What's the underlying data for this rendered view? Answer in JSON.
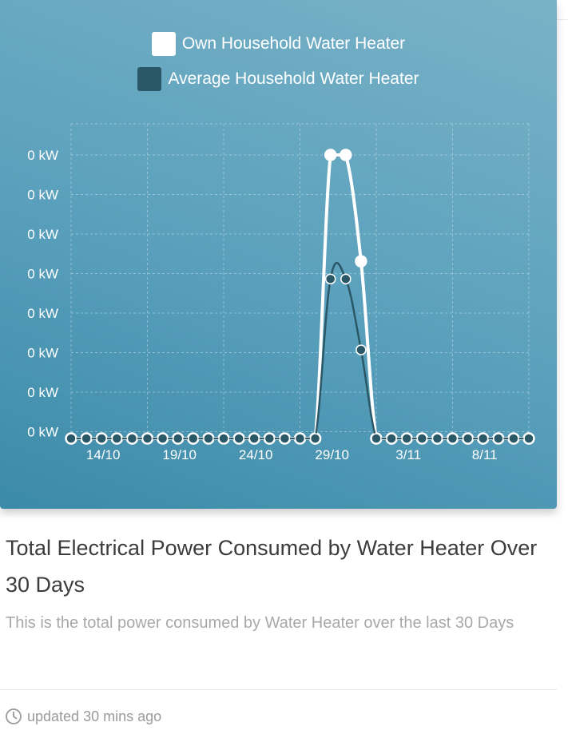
{
  "card": {
    "title": "Total Electrical Power Consumed by Water Heater Over 30 Days",
    "description": "This is the total power consumed by Water Heater over the last 30 Days",
    "footer_text": "updated 30 mins ago",
    "footer_icon": "clock-icon"
  },
  "chart_data": {
    "type": "line",
    "title": "",
    "xlabel": "",
    "ylabel": "",
    "y_tick_labels": [
      "0 kW",
      "0 kW",
      "0 kW",
      "0 kW",
      "0 kW",
      "0 kW",
      "0 kW",
      "0 kW"
    ],
    "x_tick_labels": [
      "14/10",
      "19/10",
      "24/10",
      "29/10",
      "3/11",
      "8/11"
    ],
    "ylim": [
      0,
      0.0007
    ],
    "grid": true,
    "legend_position": "top-center",
    "x": [
      "12/10",
      "13/10",
      "14/10",
      "15/10",
      "16/10",
      "17/10",
      "18/10",
      "19/10",
      "20/10",
      "21/10",
      "22/10",
      "23/10",
      "24/10",
      "25/10",
      "26/10",
      "27/10",
      "28/10",
      "29/10",
      "30/10",
      "31/10",
      "1/11",
      "2/11",
      "3/11",
      "4/11",
      "5/11",
      "6/11",
      "7/11",
      "8/11",
      "9/11",
      "10/11",
      "11/11"
    ],
    "series": [
      {
        "name": "Own Household Water Heater",
        "color": "#ffffff",
        "values": [
          0,
          0,
          0,
          0,
          0,
          0,
          0,
          0,
          0,
          0,
          0,
          0,
          0,
          0,
          0,
          0,
          0,
          0.00064,
          0.00064,
          0.0004,
          0,
          0,
          0,
          0,
          0,
          0,
          0,
          0,
          0,
          0,
          0
        ]
      },
      {
        "name": "Average Household Water Heater",
        "color": "#2a5867",
        "values": [
          0,
          0,
          0,
          0,
          0,
          0,
          0,
          0,
          0,
          0,
          0,
          0,
          0,
          0,
          0,
          0,
          0,
          0.00036,
          0.00036,
          0.0002,
          0,
          0,
          0,
          0,
          0,
          0,
          0,
          0,
          0,
          0,
          0
        ]
      }
    ]
  }
}
